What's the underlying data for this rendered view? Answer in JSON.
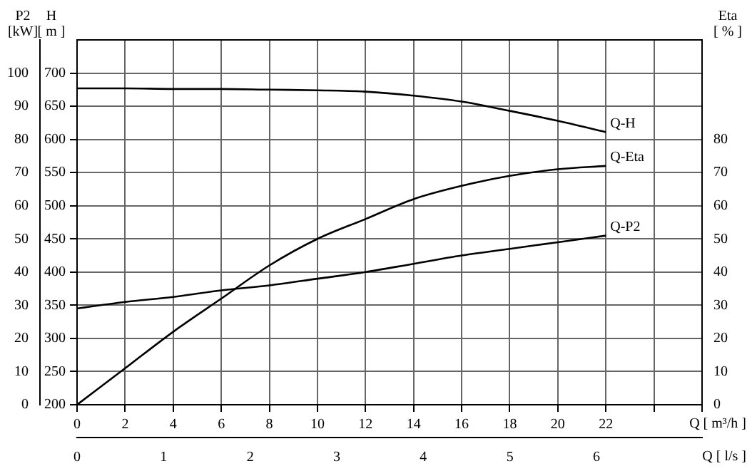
{
  "chart_data": {
    "type": "line",
    "x": [
      0,
      2,
      4,
      6,
      8,
      10,
      12,
      14,
      16,
      18,
      20,
      22
    ],
    "series": [
      {
        "name": "Q-H",
        "color": "#000000",
        "axis": "y",
        "values": [
          677,
          677,
          676,
          676,
          675,
          674,
          672,
          666,
          657,
          643,
          628,
          611
        ]
      },
      {
        "name": "Q-Eta",
        "color": "#000000",
        "axis": "y2",
        "values": [
          0,
          11,
          22,
          32,
          42,
          50,
          56,
          62,
          66,
          69,
          71,
          72
        ]
      },
      {
        "name": "Q-P2",
        "color": "#000000",
        "axis": "y3",
        "values": [
          29,
          31,
          32.5,
          34.5,
          36,
          38,
          40,
          42.5,
          45,
          47,
          49,
          51
        ]
      }
    ],
    "xlabel": "Q [ m³/h ]",
    "xlim": [
      0,
      26
    ],
    "xticks": [
      0,
      2,
      4,
      6,
      8,
      10,
      12,
      14,
      16,
      18,
      20,
      22,
      {
        "value": 24,
        "label": null
      },
      {
        "value": 26,
        "label": null
      }
    ],
    "x2label": "Q [ l/s ]",
    "x2lim": [
      0,
      7.22
    ],
    "x2ticks": [
      0,
      1,
      2,
      3,
      4,
      5,
      6
    ],
    "ylabel": "H\n[ m ]",
    "ylim": [
      200,
      750
    ],
    "yticks": [
      200,
      250,
      300,
      350,
      400,
      450,
      500,
      550,
      600,
      650,
      700
    ],
    "y2label": "Eta\n[ % ]",
    "y2lim": [
      0,
      110
    ],
    "y2ticks": [
      0,
      10,
      20,
      30,
      40,
      50,
      60,
      70,
      80
    ],
    "y3label": "P2\n[kW]",
    "y3lim": [
      0,
      110
    ],
    "y3ticks": [
      0,
      10,
      20,
      30,
      40,
      50,
      60,
      70,
      80,
      90,
      100
    ],
    "grid": true,
    "legend": false
  }
}
